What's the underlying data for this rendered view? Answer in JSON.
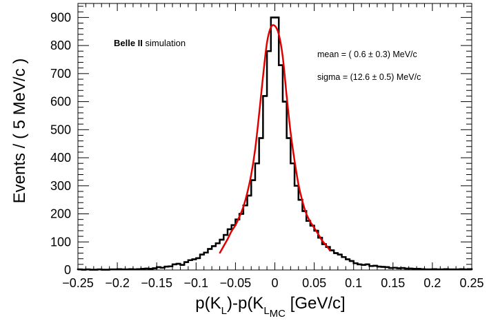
{
  "chart_data": {
    "type": "histogram",
    "title": "",
    "xlabel": {
      "p1": "p(K",
      "s1": "L",
      "p2": ")-p(K",
      "s2": "L",
      "s3": "MC",
      "p3": "  [GeV/c]"
    },
    "ylabel": "Events / ( 5 MeV/c )",
    "xlim": [
      -0.25,
      0.25
    ],
    "ylim": [
      0,
      950
    ],
    "x_ticks": [
      -0.25,
      -0.2,
      -0.15,
      -0.1,
      -0.05,
      0,
      0.05,
      0.1,
      0.15,
      0.2,
      0.25
    ],
    "x_tick_labels": [
      "−0.25",
      "−0.2",
      "−0.15",
      "−0.1",
      "−0.05",
      "0",
      "0.05",
      "0.1",
      "0.15",
      "0.2",
      "0.25"
    ],
    "y_ticks": [
      0,
      100,
      200,
      300,
      400,
      500,
      600,
      700,
      800,
      900
    ],
    "y_tick_labels": [
      "0",
      "100",
      "200",
      "300",
      "400",
      "500",
      "600",
      "700",
      "800",
      "900"
    ],
    "bin_width": 0.005,
    "histogram": {
      "bin_low_edges": [
        -0.25,
        -0.245,
        -0.24,
        -0.235,
        -0.23,
        -0.225,
        -0.22,
        -0.215,
        -0.21,
        -0.205,
        -0.2,
        -0.195,
        -0.19,
        -0.185,
        -0.18,
        -0.175,
        -0.17,
        -0.165,
        -0.16,
        -0.155,
        -0.15,
        -0.145,
        -0.14,
        -0.135,
        -0.13,
        -0.125,
        -0.12,
        -0.115,
        -0.11,
        -0.105,
        -0.1,
        -0.095,
        -0.09,
        -0.085,
        -0.08,
        -0.075,
        -0.07,
        -0.065,
        -0.06,
        -0.055,
        -0.05,
        -0.045,
        -0.04,
        -0.035,
        -0.03,
        -0.025,
        -0.02,
        -0.015,
        -0.01,
        -0.005,
        0,
        0.005,
        0.01,
        0.015,
        0.02,
        0.025,
        0.03,
        0.035,
        0.04,
        0.045,
        0.05,
        0.055,
        0.06,
        0.065,
        0.07,
        0.075,
        0.08,
        0.085,
        0.09,
        0.095,
        0.1,
        0.105,
        0.11,
        0.115,
        0.12,
        0.125,
        0.13,
        0.135,
        0.14,
        0.145,
        0.15,
        0.155,
        0.16,
        0.165,
        0.17,
        0.175,
        0.18,
        0.185,
        0.19,
        0.195,
        0.2,
        0.205,
        0.21,
        0.215,
        0.22,
        0.225,
        0.23,
        0.235,
        0.24,
        0.245
      ],
      "counts": [
        2,
        1,
        2,
        1,
        1,
        2,
        1,
        1,
        2,
        2,
        3,
        2,
        2,
        3,
        2,
        3,
        4,
        5,
        4,
        6,
        10,
        8,
        12,
        13,
        20,
        22,
        18,
        28,
        35,
        38,
        42,
        55,
        62,
        75,
        85,
        95,
        108,
        125,
        145,
        160,
        180,
        200,
        230,
        265,
        320,
        380,
        470,
        620,
        780,
        900,
        900,
        730,
        600,
        470,
        380,
        300,
        250,
        210,
        175,
        158,
        140,
        115,
        92,
        82,
        70,
        60,
        55,
        46,
        38,
        32,
        24,
        20,
        18,
        20,
        14,
        15,
        12,
        11,
        10,
        7,
        8,
        6,
        7,
        5,
        5,
        4,
        4,
        3,
        2,
        2,
        3,
        2,
        2,
        3,
        2,
        2,
        2,
        3,
        2,
        3
      ]
    },
    "fit": {
      "name": "",
      "color": "#e00000",
      "x_range": [
        -0.07,
        0.07
      ],
      "x": [
        -0.07,
        -0.065,
        -0.06,
        -0.055,
        -0.05,
        -0.045,
        -0.04,
        -0.035,
        -0.03,
        -0.025,
        -0.02,
        -0.015,
        -0.01,
        -0.005,
        0,
        0.005,
        0.01,
        0.015,
        0.02,
        0.025,
        0.03,
        0.035,
        0.04,
        0.045,
        0.05,
        0.055,
        0.06,
        0.065,
        0.07
      ],
      "y": [
        60,
        85,
        110,
        138,
        160,
        190,
        225,
        275,
        340,
        430,
        555,
        690,
        810,
        865,
        870,
        840,
        760,
        620,
        490,
        390,
        305,
        245,
        200,
        172,
        150,
        128,
        105,
        88,
        70
      ]
    },
    "histogram_color": "#000000",
    "annotations": {
      "belle_bold": "Belle II",
      "belle_rest": " simulation",
      "mean": "mean  = ( 0.6 ± 0.3) MeV/c",
      "sigma": "sigma = (12.6 ± 0.5) MeV/c"
    }
  }
}
